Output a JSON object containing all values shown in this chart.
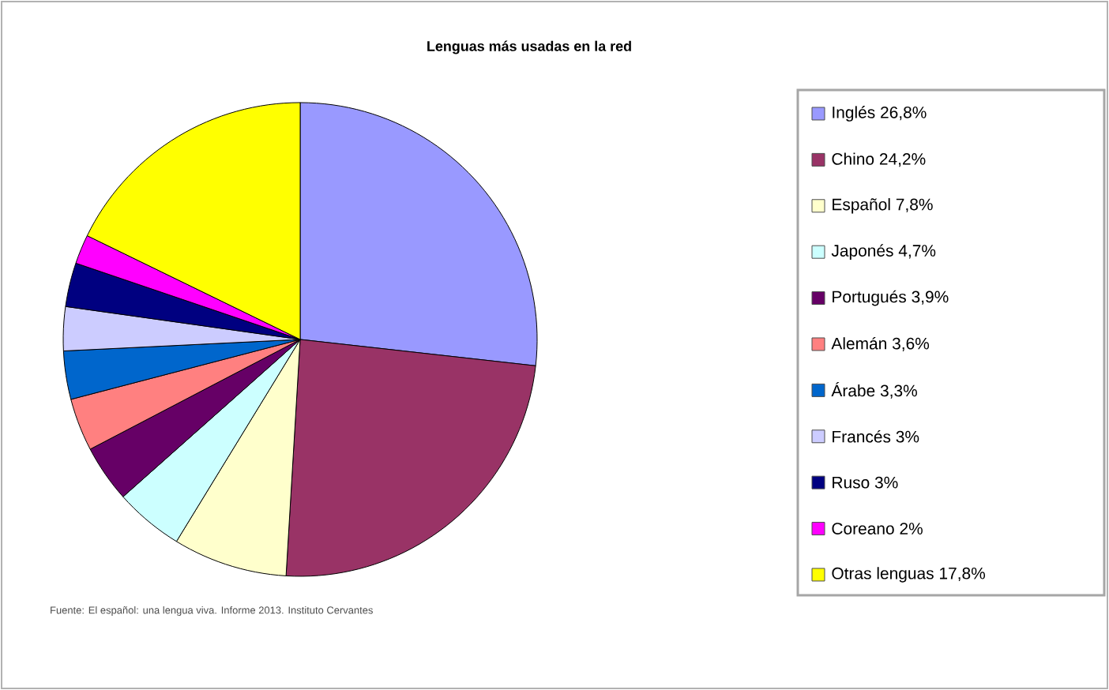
{
  "chart_data": {
    "type": "pie",
    "title": "Lenguas más usadas en la red",
    "categories": [
      "Inglés",
      "Chino",
      "Español",
      "Japonés",
      "Portugués",
      "Alemán",
      "Árabe",
      "Francés",
      "Ruso",
      "Coreano",
      "Otras lenguas"
    ],
    "values": [
      26.8,
      24.2,
      7.8,
      4.7,
      3.9,
      3.6,
      3.3,
      3,
      3,
      2,
      17.8
    ],
    "value_labels": [
      "26,8%",
      "24,2%",
      "7,8%",
      "4,7%",
      "3,9%",
      "3,6%",
      "3,3%",
      "3%",
      "3%",
      "2%",
      "17,8%"
    ],
    "colors": [
      "#9999ff",
      "#993366",
      "#ffffcc",
      "#ccffff",
      "#660066",
      "#ff8080",
      "#0066cc",
      "#ccccff",
      "#000080",
      "#ff00ff",
      "#ffff00"
    ],
    "legend": "right",
    "annotations": [
      "Fuente: El español: una lengua viva. Informe 2013. Instituto Cervantes"
    ]
  }
}
